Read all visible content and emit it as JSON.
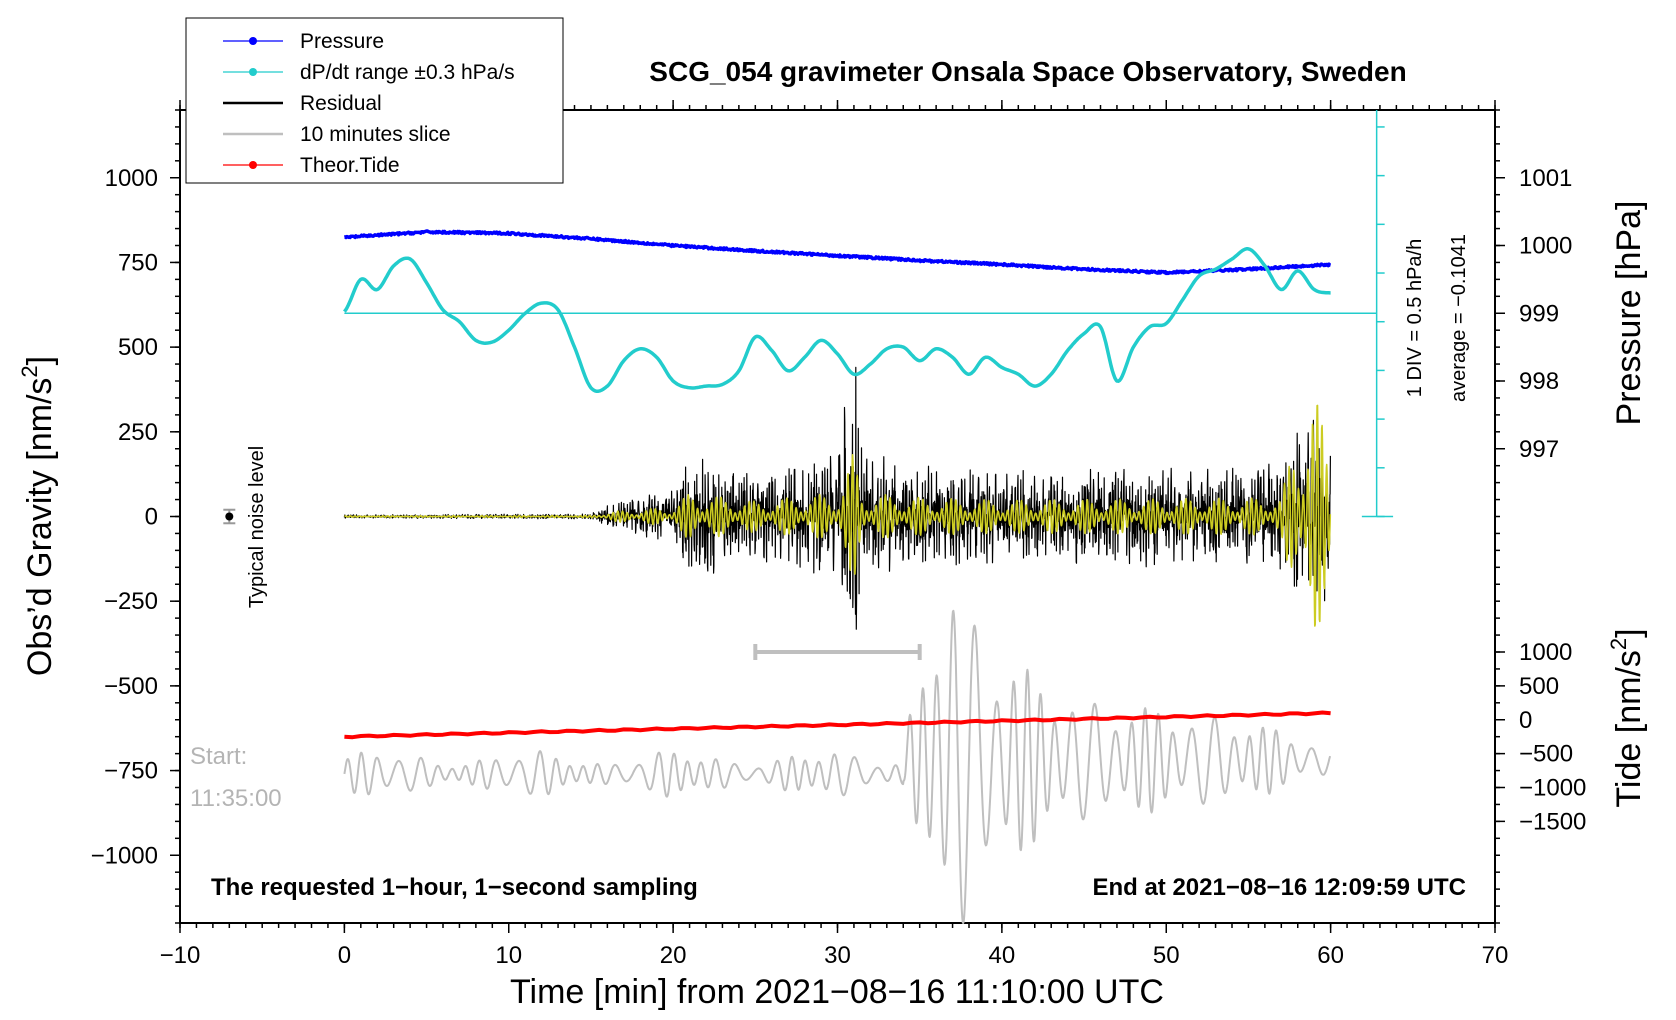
{
  "chart_data": {
    "type": "line",
    "title": "SCG_054 gravimeter Onsala Space Observatory, Sweden",
    "xlabel": "Time [min] from 2021−08−16 11:10:00 UTC",
    "ylabel_left": "Obs’d Gravity [nm/s²]",
    "ylabel_left_base": "Obs’d Gravity [nm/s",
    "ylabel_left_exp": "2",
    "ylabel_right_top": "Pressure [hPa]",
    "ylabel_right_bottom_base": "Tide [nm/s",
    "ylabel_right_bottom_exp": "2",
    "xlim": [
      -10,
      70
    ],
    "ylim": [
      -1200,
      1200
    ],
    "x_ticks": [
      -10,
      0,
      10,
      20,
      30,
      40,
      50,
      60,
      70
    ],
    "x_tick_labels": [
      "−10",
      "0",
      "10",
      "20",
      "30",
      "40",
      "50",
      "60",
      "70"
    ],
    "y_ticks": [
      1000,
      750,
      500,
      250,
      0,
      -250,
      -500,
      -750,
      -1000
    ],
    "y_tick_labels": [
      "1000",
      "750",
      "500",
      "250",
      "0",
      "−250",
      "−500",
      "−750",
      "−1000"
    ],
    "pressure_axis": {
      "ticks": [
        1001,
        1000,
        999,
        998,
        997
      ],
      "labels": [
        "1001",
        "1000",
        "999",
        "998",
        "997"
      ],
      "gravity_equiv_of_999": 600,
      "gravity_per_hpa": 200
    },
    "tide_axis": {
      "ticks": [
        1000,
        500,
        0,
        -500,
        -1000,
        -1500
      ],
      "labels": [
        "1000",
        "500",
        "0",
        "−500",
        "−1000",
        "−1500"
      ],
      "zero_offset": -600,
      "scale": 0.2
    },
    "series": [
      {
        "name": "Pressure",
        "color": "#0000ff",
        "x": [
          0,
          5,
          10,
          15,
          20,
          25,
          30,
          35,
          40,
          45,
          50,
          55,
          60
        ],
        "values_hpa": [
          1000.12,
          1000.2,
          1000.18,
          1000.1,
          1000.0,
          999.92,
          999.85,
          999.78,
          999.72,
          999.65,
          999.6,
          999.65,
          999.72
        ]
      },
      {
        "name": "dP/dt range ±0.3 hPa/s",
        "color": "#22cccc",
        "x": [
          0,
          1,
          2,
          3,
          4,
          5,
          6,
          7,
          8,
          9,
          10,
          11,
          12,
          13,
          14,
          15,
          16,
          17,
          18,
          19,
          20,
          21,
          22,
          23,
          24,
          25,
          26,
          27,
          28,
          29,
          30,
          31,
          32,
          33,
          34,
          35,
          36,
          37,
          38,
          39,
          40,
          41,
          42,
          43,
          44,
          45,
          46,
          47,
          48,
          49,
          50,
          51,
          52,
          53,
          54,
          55,
          56,
          57,
          58,
          59,
          60
        ],
        "values": [
          605,
          700,
          670,
          740,
          760,
          690,
          610,
          575,
          520,
          515,
          550,
          600,
          630,
          610,
          500,
          380,
          385,
          460,
          495,
          470,
          400,
          380,
          385,
          390,
          430,
          530,
          490,
          430,
          470,
          520,
          480,
          420,
          450,
          495,
          500,
          460,
          495,
          470,
          420,
          470,
          440,
          420,
          385,
          420,
          490,
          540,
          560,
          400,
          500,
          560,
          570,
          640,
          710,
          730,
          760,
          790,
          740,
          670,
          725,
          670,
          660
        ]
      },
      {
        "name": "Residual",
        "color": "#000000",
        "envelope": {
          "x": [
            0,
            15,
            16,
            20,
            21,
            25,
            30,
            31,
            31.5,
            35,
            40,
            50,
            57,
            58,
            59,
            60
          ],
          "amp": [
            5,
            8,
            40,
            80,
            200,
            130,
            200,
            550,
            200,
            160,
            140,
            150,
            160,
            280,
            330,
            220
          ]
        }
      },
      {
        "name": "10 minutes slice",
        "color": "#bfbfbf",
        "range_bar": [
          25,
          35
        ],
        "range_bar_y": -400
      },
      {
        "name": "Theor.Tide",
        "color": "#ff0000",
        "x": [
          0,
          60
        ],
        "values": [
          -650,
          -580
        ]
      }
    ],
    "noise_marker": {
      "x": -7,
      "y": 0,
      "error": 20,
      "label": "Typical noise level"
    },
    "zero_reference": {
      "pressure_hpa": 999,
      "label_div": "1 DIV = 0.5 hPa/h",
      "label_avg": "average = −0.1041"
    },
    "legend": {
      "position": "top-left",
      "items": [
        {
          "label": "Pressure",
          "color": "#0000ff",
          "style": "line-dot"
        },
        {
          "label": "dP/dt range ±0.3 hPa/s",
          "color": "#22cccc",
          "style": "line-dot"
        },
        {
          "label": "Residual",
          "color": "#000000",
          "style": "line"
        },
        {
          "label": "10 minutes slice",
          "color": "#bfbfbf",
          "style": "line"
        },
        {
          "label": "Theor.Tide",
          "color": "#ff0000",
          "style": "line-dot"
        }
      ]
    },
    "annotations": {
      "start_label": "Start:",
      "start_time": "11:35:00",
      "bottom_left": "The requested 1−hour, 1−second sampling",
      "bottom_right": "End at 2021−08−16 12:09:59 UTC"
    }
  }
}
